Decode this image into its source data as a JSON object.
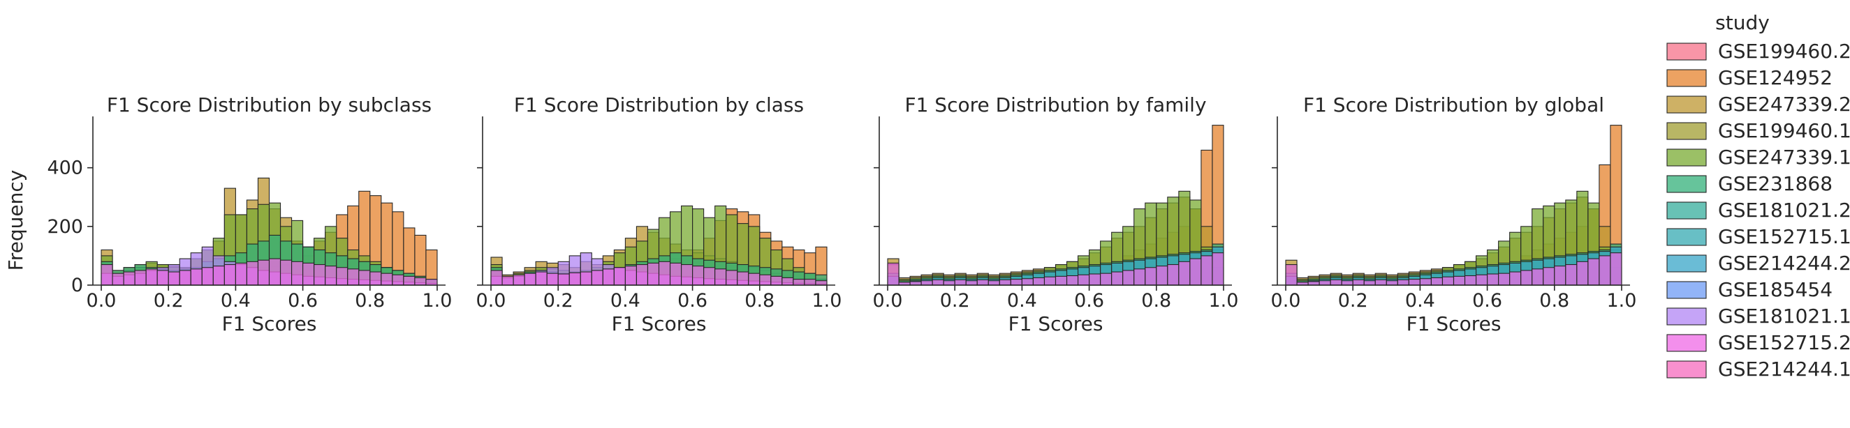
{
  "figure": {
    "ylabel": "Frequency",
    "xlabel": "F1 Scores",
    "legend_title": "study"
  },
  "chart_data": {
    "type": "histogram",
    "stacking": "layered",
    "bins": 30,
    "bin_range": [
      0,
      1
    ],
    "xlim": [
      -0.025,
      1.025
    ],
    "ylim": [
      0,
      575
    ],
    "xticks": [
      0.0,
      0.2,
      0.4,
      0.6,
      0.8,
      1.0
    ],
    "xtick_labels": [
      "0.0",
      "0.2",
      "0.4",
      "0.6",
      "0.8",
      "1.0"
    ],
    "yticks": [
      0,
      200,
      400
    ],
    "ytick_labels": [
      "0",
      "200",
      "400"
    ],
    "legend_position": "right",
    "legend": [
      {
        "name": "GSE199460.2",
        "color": "#f77189"
      },
      {
        "name": "GSE124952",
        "color": "#e5832e"
      },
      {
        "name": "GSE247339.2",
        "color": "#be9732"
      },
      {
        "name": "GSE199460.1",
        "color": "#a09d31"
      },
      {
        "name": "GSE247339.1",
        "color": "#7aab33"
      },
      {
        "name": "GSE231868",
        "color": "#33b07a"
      },
      {
        "name": "GSE181021.2",
        "color": "#35ad9c"
      },
      {
        "name": "GSE152715.1",
        "color": "#36aab1"
      },
      {
        "name": "GSE214244.2",
        "color": "#38a6c8"
      },
      {
        "name": "GSE185454",
        "color": "#6e9bf4"
      },
      {
        "name": "GSE181021.1",
        "color": "#b286f4"
      },
      {
        "name": "GSE152715.2",
        "color": "#ef6ae6"
      },
      {
        "name": "GSE214244.1",
        "color": "#f66bbd"
      }
    ],
    "panels": [
      {
        "title": "F1 Score Distribution by subclass",
        "layers": [
          {
            "name": "GSE124952",
            "values": [
              25,
              20,
              15,
              20,
              22,
              25,
              20,
              25,
              30,
              35,
              40,
              45,
              50,
              55,
              60,
              65,
              70,
              80,
              100,
              150,
              180,
              240,
              270,
              320,
              305,
              280,
              250,
              195,
              170,
              120
            ]
          },
          {
            "name": "GSE247339.2",
            "values": [
              120,
              50,
              60,
              70,
              75,
              70,
              65,
              60,
              90,
              120,
              150,
              330,
              240,
              290,
              365,
              260,
              230,
              150,
              130,
              120,
              110,
              100,
              90,
              80,
              70,
              60,
              50,
              40,
              30,
              20
            ]
          },
          {
            "name": "GSE247339.1",
            "values": [
              100,
              40,
              50,
              60,
              80,
              70,
              60,
              60,
              90,
              120,
              160,
              240,
              240,
              260,
              275,
              280,
              200,
              220,
              130,
              160,
              200,
              160,
              120,
              100,
              80,
              60,
              50,
              40,
              25,
              15
            ]
          },
          {
            "name": "GSE231868",
            "values": [
              80,
              50,
              60,
              70,
              60,
              55,
              50,
              55,
              60,
              80,
              90,
              100,
              110,
              140,
              150,
              170,
              150,
              140,
              130,
              120,
              110,
              100,
              90,
              80,
              70,
              60,
              50,
              40,
              30,
              20
            ]
          },
          {
            "name": "GSE181021.1",
            "values": [
              40,
              30,
              35,
              40,
              50,
              60,
              70,
              90,
              110,
              130,
              100,
              80,
              70,
              60,
              50,
              45,
              40,
              35,
              30,
              28,
              25,
              22,
              20,
              18,
              16,
              14,
              12,
              10,
              8,
              6
            ]
          },
          {
            "name": "GSE152715.2",
            "values": [
              70,
              40,
              45,
              50,
              55,
              50,
              45,
              50,
              55,
              60,
              65,
              70,
              75,
              80,
              85,
              90,
              85,
              80,
              75,
              70,
              65,
              60,
              55,
              50,
              45,
              40,
              35,
              30,
              25,
              20
            ]
          }
        ]
      },
      {
        "title": "F1 Score Distribution by class",
        "layers": [
          {
            "name": "GSE124952",
            "values": [
              20,
              15,
              15,
              18,
              20,
              22,
              25,
              28,
              30,
              35,
              40,
              45,
              50,
              60,
              70,
              80,
              90,
              100,
              120,
              160,
              220,
              260,
              250,
              240,
              180,
              150,
              130,
              120,
              110,
              130
            ]
          },
          {
            "name": "GSE247339.2",
            "values": [
              95,
              35,
              45,
              60,
              80,
              75,
              70,
              60,
              80,
              70,
              100,
              120,
              160,
              200,
              180,
              160,
              140,
              120,
              110,
              100,
              90,
              80,
              70,
              60,
              50,
              40,
              30,
              20,
              15,
              10
            ]
          },
          {
            "name": "GSE247339.1",
            "values": [
              70,
              30,
              40,
              50,
              60,
              55,
              50,
              45,
              50,
              60,
              80,
              110,
              130,
              150,
              190,
              230,
              250,
              270,
              260,
              230,
              270,
              240,
              210,
              200,
              160,
              120,
              90,
              60,
              40,
              20
            ]
          },
          {
            "name": "GSE231868",
            "values": [
              60,
              25,
              35,
              45,
              50,
              45,
              40,
              40,
              45,
              50,
              55,
              60,
              70,
              80,
              90,
              100,
              110,
              100,
              90,
              85,
              80,
              75,
              70,
              65,
              60,
              55,
              50,
              45,
              40,
              35
            ]
          },
          {
            "name": "GSE181021.1",
            "values": [
              30,
              25,
              30,
              40,
              50,
              60,
              80,
              100,
              110,
              90,
              70,
              60,
              50,
              45,
              40,
              35,
              30,
              28,
              25,
              22,
              20,
              18,
              16,
              14,
              12,
              10,
              8,
              6,
              5,
              4
            ]
          },
          {
            "name": "GSE152715.2",
            "values": [
              50,
              30,
              35,
              40,
              45,
              40,
              38,
              42,
              45,
              50,
              55,
              60,
              65,
              70,
              75,
              80,
              75,
              70,
              65,
              60,
              55,
              50,
              45,
              40,
              35,
              30,
              25,
              20,
              20,
              15
            ]
          }
        ]
      },
      {
        "title": "F1 Score Distribution by family",
        "layers": [
          {
            "name": "GSE124952",
            "values": [
              10,
              8,
              8,
              8,
              8,
              8,
              8,
              8,
              8,
              10,
              10,
              12,
              15,
              18,
              20,
              25,
              30,
              40,
              50,
              60,
              80,
              100,
              120,
              140,
              160,
              180,
              200,
              260,
              460,
              545
            ]
          },
          {
            "name": "GSE247339.2",
            "values": [
              90,
              25,
              30,
              35,
              40,
              35,
              40,
              35,
              40,
              35,
              40,
              45,
              50,
              55,
              60,
              70,
              80,
              90,
              110,
              130,
              160,
              180,
              200,
              230,
              260,
              280,
              300,
              260,
              200,
              120
            ]
          },
          {
            "name": "GSE247339.1",
            "values": [
              70,
              20,
              25,
              30,
              35,
              30,
              35,
              30,
              35,
              30,
              35,
              40,
              45,
              50,
              60,
              70,
              80,
              100,
              120,
              150,
              180,
              200,
              260,
              280,
              280,
              300,
              320,
              290,
              130,
              60
            ]
          },
          {
            "name": "GSE231868",
            "values": [
              40,
              15,
              20,
              25,
              30,
              25,
              30,
              25,
              30,
              25,
              30,
              35,
              40,
              45,
              50,
              55,
              60,
              65,
              70,
              75,
              80,
              85,
              90,
              95,
              100,
              105,
              110,
              115,
              120,
              140
            ]
          },
          {
            "name": "GSE214244.2",
            "values": [
              30,
              10,
              15,
              20,
              25,
              20,
              25,
              20,
              25,
              20,
              25,
              30,
              35,
              40,
              45,
              50,
              55,
              60,
              65,
              70,
              75,
              80,
              85,
              90,
              95,
              100,
              105,
              110,
              115,
              130
            ]
          },
          {
            "name": "GSE152715.2",
            "values": [
              75,
              10,
              12,
              15,
              18,
              15,
              18,
              15,
              18,
              15,
              18,
              20,
              22,
              25,
              28,
              30,
              32,
              35,
              38,
              40,
              45,
              50,
              55,
              60,
              65,
              70,
              80,
              90,
              100,
              110
            ]
          }
        ]
      },
      {
        "title": "F1 Score Distribution by global",
        "layers": [
          {
            "name": "GSE124952",
            "values": [
              10,
              8,
              8,
              8,
              8,
              8,
              8,
              8,
              8,
              10,
              10,
              12,
              15,
              18,
              20,
              25,
              30,
              40,
              50,
              60,
              80,
              100,
              120,
              140,
              160,
              180,
              200,
              260,
              410,
              545
            ]
          },
          {
            "name": "GSE247339.2",
            "values": [
              85,
              25,
              30,
              35,
              40,
              35,
              40,
              35,
              40,
              35,
              40,
              45,
              50,
              55,
              60,
              70,
              80,
              90,
              110,
              130,
              160,
              180,
              200,
              230,
              260,
              280,
              300,
              260,
              200,
              120
            ]
          },
          {
            "name": "GSE247339.1",
            "values": [
              70,
              20,
              25,
              30,
              35,
              30,
              35,
              30,
              35,
              30,
              35,
              40,
              45,
              50,
              60,
              70,
              80,
              100,
              120,
              150,
              180,
              200,
              260,
              270,
              280,
              290,
              320,
              280,
              130,
              60
            ]
          },
          {
            "name": "GSE231868",
            "values": [
              40,
              15,
              20,
              25,
              30,
              25,
              30,
              25,
              30,
              25,
              30,
              35,
              40,
              45,
              50,
              55,
              60,
              65,
              70,
              75,
              80,
              85,
              90,
              95,
              100,
              105,
              110,
              115,
              120,
              140
            ]
          },
          {
            "name": "GSE214244.2",
            "values": [
              30,
              10,
              15,
              20,
              25,
              20,
              25,
              20,
              25,
              20,
              25,
              30,
              35,
              40,
              45,
              50,
              55,
              60,
              65,
              70,
              75,
              80,
              85,
              90,
              95,
              100,
              105,
              110,
              115,
              130
            ]
          },
          {
            "name": "GSE152715.2",
            "values": [
              70,
              10,
              12,
              15,
              18,
              15,
              18,
              15,
              18,
              15,
              18,
              20,
              22,
              25,
              28,
              30,
              32,
              35,
              38,
              40,
              45,
              50,
              55,
              60,
              65,
              70,
              80,
              90,
              100,
              110
            ]
          }
        ]
      }
    ]
  }
}
